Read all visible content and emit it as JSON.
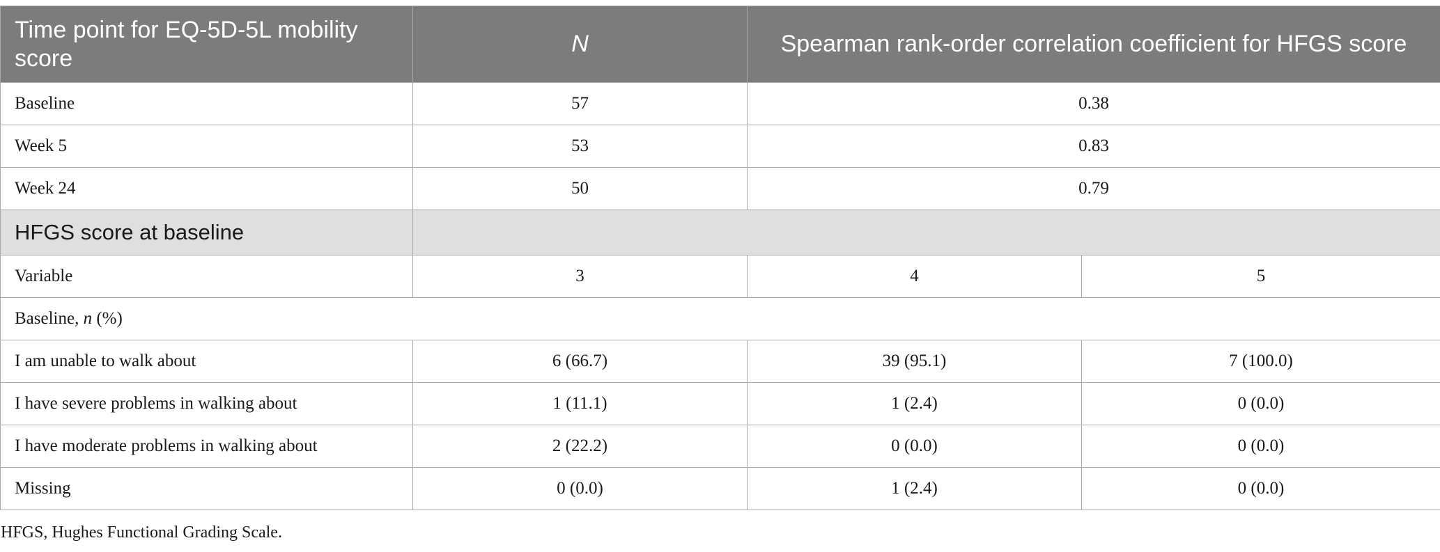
{
  "header": {
    "col1": "Time point for EQ-5D-5L mobility score",
    "col2": "N",
    "col3": "Spearman rank-order correlation coefficient for HFGS score"
  },
  "correlation_rows": [
    {
      "label": "Baseline",
      "n": "57",
      "coef": "0.38"
    },
    {
      "label": "Week 5",
      "n": "53",
      "coef": "0.83"
    },
    {
      "label": "Week 24",
      "n": "50",
      "coef": "0.79"
    }
  ],
  "section": {
    "label": "HFGS score at baseline"
  },
  "variable_row": {
    "label": "Variable",
    "v3": "3",
    "v4": "4",
    "v5": "5"
  },
  "baseline_label": {
    "prefix": "Baseline, ",
    "n": "n",
    "suffix": " (%)"
  },
  "mobility_rows": [
    {
      "label": "I am unable to walk about",
      "v3": "6 (66.7)",
      "v4": "39 (95.1)",
      "v5": "7 (100.0)"
    },
    {
      "label": "I have severe problems in walking about",
      "v3": "1 (11.1)",
      "v4": "1 (2.4)",
      "v5": "0 (0.0)"
    },
    {
      "label": "I have moderate problems in walking about",
      "v3": "2 (22.2)",
      "v4": "0 (0.0)",
      "v5": "0 (0.0)"
    },
    {
      "label": "Missing",
      "v3": "0 (0.0)",
      "v4": "1 (2.4)",
      "v5": "0 (0.0)"
    }
  ],
  "footnote": "HFGS, Hughes Functional Grading Scale."
}
